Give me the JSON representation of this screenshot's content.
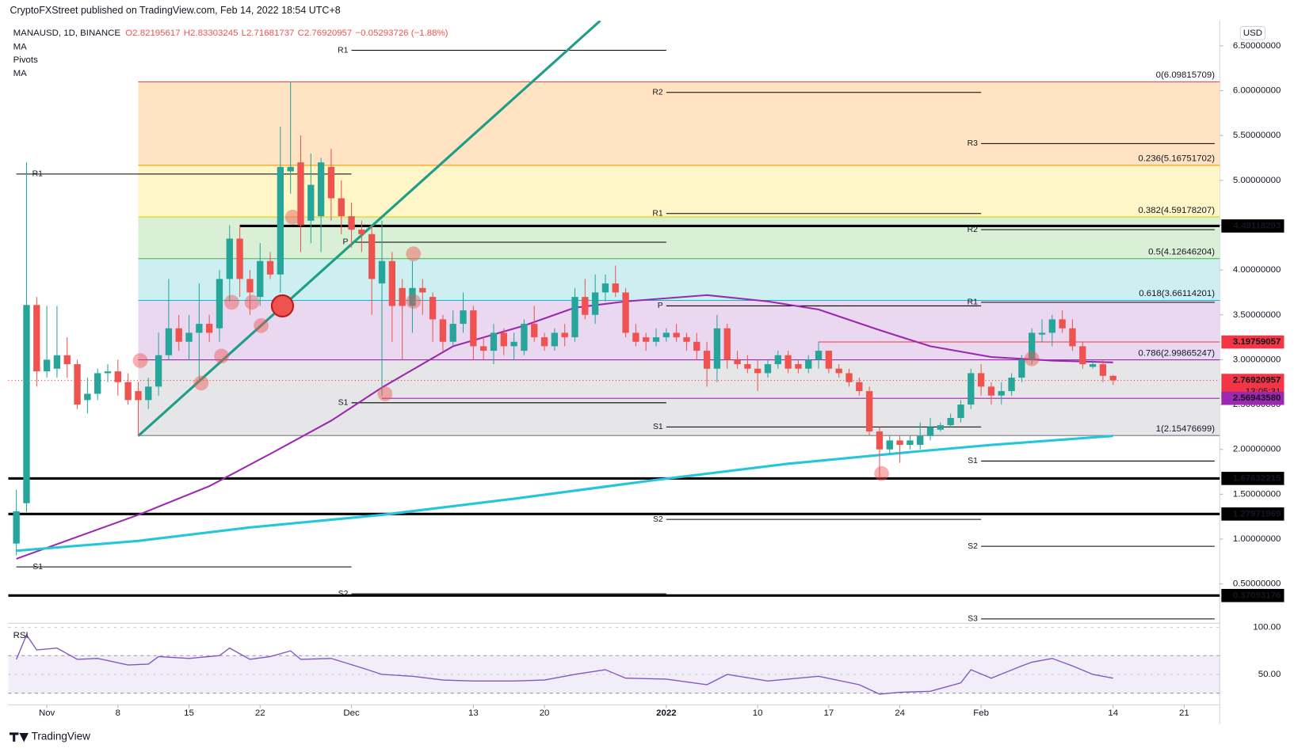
{
  "chart_data": {
    "type": "candlestick",
    "header": "CryptoFXStreet published on TradingView.com, Feb 14, 2022 18:54 UTC+8",
    "title": "MANAUSD, 1D, BINANCE",
    "ohlc_legend": [
      "O2.82195617",
      "H2.83303245",
      "L2.71681737",
      "C2.76920957",
      "−0.05293726 (−1.88%)"
    ],
    "indicators": [
      "MA",
      "Pivots",
      "MA"
    ],
    "currency": "USD",
    "footer": "TradingView",
    "countdown": "13:05:31",
    "up_color": "#26a69a",
    "down_color": "#ef5350",
    "xlim": [
      -0.8,
      118.5
    ],
    "xticks": [
      {
        "value": 3,
        "label": "Nov"
      },
      {
        "value": 10,
        "label": "8"
      },
      {
        "value": 17,
        "label": "15"
      },
      {
        "value": 24,
        "label": "22"
      },
      {
        "value": 33,
        "label": "Dec"
      },
      {
        "value": 45,
        "label": "13"
      },
      {
        "value": 52,
        "label": "20"
      },
      {
        "value": 64,
        "label": "2022"
      },
      {
        "value": 73,
        "label": "10"
      },
      {
        "value": 80,
        "label": "17"
      },
      {
        "value": 87,
        "label": "24"
      },
      {
        "value": 95,
        "label": "Feb"
      },
      {
        "value": 108,
        "label": "14"
      },
      {
        "value": 115,
        "label": "21"
      }
    ],
    "ylim": [
      0.07,
      6.78
    ],
    "yticks": [
      {
        "value": 0.5,
        "label": "0.50000000"
      },
      {
        "value": 1,
        "label": "1.00000000"
      },
      {
        "value": 1.5,
        "label": "1.50000000"
      },
      {
        "value": 2,
        "label": "2.00000000"
      },
      {
        "value": 2.5,
        "label": "2.50000000"
      },
      {
        "value": 3,
        "label": "3.00000000"
      },
      {
        "value": 3.5,
        "label": "3.50000000"
      },
      {
        "value": 4,
        "label": "4.00000000"
      },
      {
        "value": 4.5,
        "label": "4.50000000"
      },
      {
        "value": 5,
        "label": "5.00000000"
      },
      {
        "value": 5.5,
        "label": "5.50000000"
      },
      {
        "value": 6,
        "label": "6.00000000"
      },
      {
        "value": 6.5,
        "label": "6.50000000"
      }
    ],
    "open": [
      0.95,
      1.4,
      3.61,
      2.87,
      2.9,
      3.05,
      2.95,
      2.55,
      2.62,
      2.85,
      2.87,
      2.75,
      2.65,
      2.55,
      2.7,
      3.05,
      3.35,
      3.2,
      3.3,
      3.4,
      3.35,
      3.9,
      4.35,
      3.9,
      3.7,
      4.1,
      3.95,
      5.1,
      5.2,
      4.55,
      4.6,
      5.15,
      4.8,
      4.6,
      4.45,
      4.4,
      3.85,
      4.1,
      3.8,
      3.6,
      3.8,
      3.7,
      3.45,
      3.2,
      3.4,
      3.55,
      3.15,
      3.1,
      3.3,
      3.15,
      3.1,
      3.4,
      3.25,
      3.15,
      3.3,
      3.25,
      3.7,
      3.5,
      3.75,
      3.85,
      3.75,
      3.3,
      3.25,
      3.2,
      3.25,
      3.3,
      3.25,
      3.2,
      3.1,
      2.9,
      3.35,
      3.0,
      2.95,
      2.9,
      2.85,
      2.95,
      3.05,
      2.95,
      2.9,
      3.0,
      3.1,
      2.9,
      2.85,
      2.75,
      2.65,
      2.2,
      2.0,
      2.1,
      2.05,
      2.05,
      2.15,
      2.22,
      2.27,
      2.35,
      2.5,
      2.85,
      2.7,
      2.6,
      2.65,
      2.8,
      3.0,
      3.28,
      3.3,
      3.45,
      3.35,
      3.15,
      2.92,
      2.95,
      2.82
    ],
    "high": [
      1.55,
      5.2,
      3.7,
      3.6,
      3.6,
      3.25,
      3.0,
      2.8,
      2.9,
      2.95,
      3.0,
      2.85,
      2.75,
      2.8,
      3.3,
      3.9,
      3.5,
      3.5,
      3.85,
      3.5,
      4.0,
      4.5,
      4.5,
      4.0,
      4.3,
      4.2,
      5.6,
      6.1,
      5.5,
      5.3,
      5.25,
      5.35,
      5.0,
      4.75,
      4.55,
      4.5,
      4.55,
      4.2,
      3.9,
      4.1,
      3.9,
      3.75,
      3.5,
      3.55,
      3.75,
      3.6,
      3.25,
      3.4,
      3.35,
      3.3,
      3.45,
      3.6,
      3.3,
      3.35,
      3.4,
      3.8,
      3.9,
      3.95,
      3.95,
      4.05,
      3.8,
      3.4,
      3.3,
      3.35,
      3.35,
      3.4,
      3.3,
      3.3,
      3.2,
      3.5,
      3.4,
      3.1,
      3.05,
      3.0,
      3.0,
      3.1,
      3.1,
      3.0,
      3.05,
      3.2,
      3.1,
      2.95,
      2.9,
      2.8,
      2.7,
      2.25,
      2.15,
      2.15,
      2.15,
      2.3,
      2.35,
      2.3,
      2.4,
      2.55,
      2.9,
      2.95,
      2.75,
      2.75,
      2.85,
      3.05,
      3.35,
      3.45,
      3.5,
      3.55,
      3.45,
      3.2,
      3.0,
      3.0,
      2.83
    ],
    "low": [
      0.82,
      1.3,
      2.7,
      2.8,
      2.8,
      2.8,
      2.45,
      2.4,
      2.55,
      2.75,
      2.6,
      2.5,
      2.15,
      2.45,
      2.6,
      3.0,
      3.1,
      3.0,
      2.75,
      3.2,
      3.2,
      3.65,
      3.7,
      3.5,
      3.6,
      3.9,
      3.75,
      4.85,
      4.2,
      4.3,
      4.2,
      4.55,
      4.4,
      4.25,
      4.2,
      3.5,
      2.6,
      3.2,
      3.0,
      3.3,
      3.5,
      3.2,
      3.1,
      3.15,
      3.3,
      3.0,
      3.0,
      2.95,
      3.05,
      3.0,
      3.05,
      3.2,
      3.1,
      3.1,
      3.15,
      3.2,
      3.45,
      3.4,
      3.65,
      3.7,
      3.25,
      3.15,
      3.1,
      3.15,
      3.2,
      3.2,
      3.1,
      3.0,
      2.7,
      2.75,
      2.9,
      2.9,
      2.85,
      2.65,
      2.8,
      2.9,
      2.85,
      2.85,
      2.85,
      2.9,
      2.85,
      2.8,
      2.7,
      2.6,
      2.15,
      1.68,
      1.95,
      1.85,
      2.0,
      2.0,
      2.1,
      2.2,
      2.25,
      2.3,
      2.45,
      2.6,
      2.5,
      2.5,
      2.6,
      2.75,
      2.95,
      3.2,
      3.15,
      3.3,
      3.1,
      2.9,
      2.9,
      2.75,
      2.72
    ],
    "close": [
      1.31,
      3.61,
      2.87,
      3.0,
      3.05,
      2.95,
      2.5,
      2.62,
      2.85,
      2.87,
      2.75,
      2.55,
      2.55,
      2.7,
      3.05,
      3.35,
      3.2,
      3.3,
      3.4,
      3.3,
      3.9,
      4.35,
      3.9,
      3.75,
      4.1,
      3.95,
      5.15,
      5.15,
      4.5,
      4.95,
      5.2,
      4.8,
      4.6,
      4.45,
      4.4,
      3.9,
      4.1,
      3.6,
      3.6,
      3.8,
      3.75,
      3.45,
      3.2,
      3.4,
      3.55,
      3.15,
      3.1,
      3.3,
      3.15,
      3.2,
      3.4,
      3.25,
      3.15,
      3.3,
      3.25,
      3.7,
      3.5,
      3.75,
      3.85,
      3.75,
      3.3,
      3.2,
      3.2,
      3.25,
      3.3,
      3.25,
      3.2,
      3.1,
      2.9,
      3.35,
      3.0,
      2.95,
      2.9,
      2.85,
      2.95,
      3.05,
      2.9,
      2.9,
      3.0,
      3.1,
      2.9,
      2.85,
      2.75,
      2.65,
      2.2,
      2.0,
      2.1,
      2.05,
      2.1,
      2.15,
      2.25,
      2.27,
      2.35,
      2.5,
      2.85,
      2.7,
      2.6,
      2.65,
      2.8,
      3.0,
      3.3,
      3.3,
      3.45,
      3.35,
      3.15,
      2.95,
      2.95,
      2.82,
      2.77
    ],
    "fib": {
      "start": 12,
      "levels": [
        {
          "label": "0(6.09815709)",
          "value": 6.09815709,
          "color": "#f23645"
        },
        {
          "label": "0.236(5.16751702)",
          "value": 5.16751702,
          "color": "#ff9800"
        },
        {
          "label": "0.382(4.59178207)",
          "value": 4.59178207,
          "color": "#e8d100"
        },
        {
          "label": "0.5(4.12646204)",
          "value": 4.12646204,
          "color": "#4caf50"
        },
        {
          "label": "0.618(3.66114201)",
          "value": 3.66114201,
          "color": "#00bcd4"
        },
        {
          "label": "0.786(2.99865247)",
          "value": 2.99865247,
          "color": "#9c27b0"
        },
        {
          "label": "1(2.15476699)",
          "value": 2.15476699,
          "color": "#787b86"
        }
      ],
      "fills": [
        "#ffe3c2",
        "#fff6c8",
        "#d9efd6",
        "#cdeff2",
        "#ead7f0",
        "#e6e6e8"
      ]
    },
    "pivots": [
      {
        "start": 0,
        "end": 33,
        "levels": [
          {
            "label": "R1",
            "value": 5.07
          },
          {
            "label": "S1",
            "value": 0.69
          }
        ]
      },
      {
        "start": 33,
        "end": 64,
        "levels": [
          {
            "label": "R1",
            "value": 6.45
          },
          {
            "label": "P",
            "value": 4.31
          },
          {
            "label": "S1",
            "value": 2.52
          },
          {
            "label": "S2",
            "value": 0.39
          }
        ]
      },
      {
        "start": 64,
        "end": 95,
        "levels": [
          {
            "label": "R2",
            "value": 5.98
          },
          {
            "label": "R1",
            "value": 4.63
          },
          {
            "label": "P",
            "value": 3.6
          },
          {
            "label": "S1",
            "value": 2.25
          },
          {
            "label": "S2",
            "value": 1.22
          }
        ]
      },
      {
        "start": 95,
        "end": 118,
        "levels": [
          {
            "label": "R3",
            "value": 5.41
          },
          {
            "label": "R2",
            "value": 4.45
          },
          {
            "label": "R1",
            "value": 3.64
          },
          {
            "label": "S1",
            "value": 1.87
          },
          {
            "label": "S2",
            "value": 0.92
          },
          {
            "label": "S3",
            "value": 0.11
          }
        ]
      }
    ],
    "levels": [
      {
        "value": 4.49118203,
        "label": "4.49118203",
        "color": "#000000",
        "start": 22
      },
      {
        "value": 3.19759057,
        "label": "3.19759057",
        "color": "#f23645",
        "start": 79
      },
      {
        "value": 2.76920957,
        "label": "2.76920957",
        "color": "#f23645",
        "start": -0.8
      },
      {
        "value": 2.5694358,
        "label": "2.56943580",
        "color": "#9c27b0",
        "start": 36
      },
      {
        "value": 1.67632215,
        "label": "1.67632215",
        "color": "#000000",
        "start": -0.8
      },
      {
        "value": 1.27971969,
        "label": "1.27971969",
        "color": "#000000",
        "start": -0.8
      },
      {
        "value": 0.37093176,
        "label": "0.37093176",
        "color": "#000000",
        "start": -0.8
      }
    ],
    "moving_averages": [
      {
        "color": "#9c27b0",
        "x": [
          0,
          12,
          19,
          25,
          31,
          36,
          43,
          50,
          55,
          60,
          68,
          74,
          79,
          85,
          90,
          96,
          102,
          108
        ],
        "values": [
          0.78,
          1.27,
          1.59,
          1.95,
          2.32,
          2.69,
          3.15,
          3.38,
          3.58,
          3.65,
          3.72,
          3.65,
          3.56,
          3.33,
          3.15,
          3.03,
          2.99,
          2.97
        ]
      },
      {
        "color": "#26c6da",
        "x": [
          0,
          12,
          23,
          36,
          49,
          63,
          76,
          88,
          96,
          108
        ],
        "values": [
          0.87,
          0.98,
          1.13,
          1.27,
          1.45,
          1.66,
          1.84,
          1.97,
          2.05,
          2.15
        ]
      }
    ],
    "trendline": {
      "color": "#1e9e86",
      "x": [
        12,
        57.5
      ],
      "values": [
        2.15,
        6.78
      ]
    },
    "markers": {
      "x": [
        12.2,
        18.2,
        20.2,
        21.2,
        23.2,
        24.1,
        27.2,
        36.3,
        39.1,
        39.1,
        85.2,
        100
      ],
      "values": [
        2.99,
        2.74,
        3.04,
        3.64,
        3.64,
        3.38,
        4.59,
        2.62,
        4.18,
        3.65,
        1.73,
        3.01
      ]
    },
    "highlight": {
      "x": 26.2,
      "value": 3.6
    },
    "rsi": {
      "label": "RSI",
      "color": "#7e57c2",
      "ylim": [
        17.5,
        102.6
      ],
      "yticks": [
        {
          "value": 100,
          "label": "100.00"
        },
        {
          "value": 50,
          "label": "50.00"
        }
      ],
      "bands": [
        30,
        70
      ],
      "x": [
        0,
        1,
        2,
        4,
        6,
        8,
        11,
        13,
        14,
        17,
        20,
        21,
        23,
        25,
        27,
        28,
        31,
        34,
        36,
        39,
        42,
        45,
        49,
        52,
        55,
        58,
        60,
        64,
        68,
        70,
        74,
        79,
        83,
        85,
        87,
        90,
        93,
        94,
        96,
        99,
        100,
        102,
        104,
        106,
        108
      ],
      "values": [
        66,
        92,
        76,
        78,
        66,
        67,
        60,
        61,
        69,
        67,
        70,
        78,
        66,
        69,
        75,
        66,
        67,
        57,
        50,
        48,
        44,
        43,
        43,
        44,
        50,
        55,
        46,
        45,
        39,
        50,
        43,
        48,
        39,
        29,
        31,
        32,
        41,
        55,
        46,
        59,
        63,
        67,
        59,
        50,
        46
      ]
    }
  }
}
